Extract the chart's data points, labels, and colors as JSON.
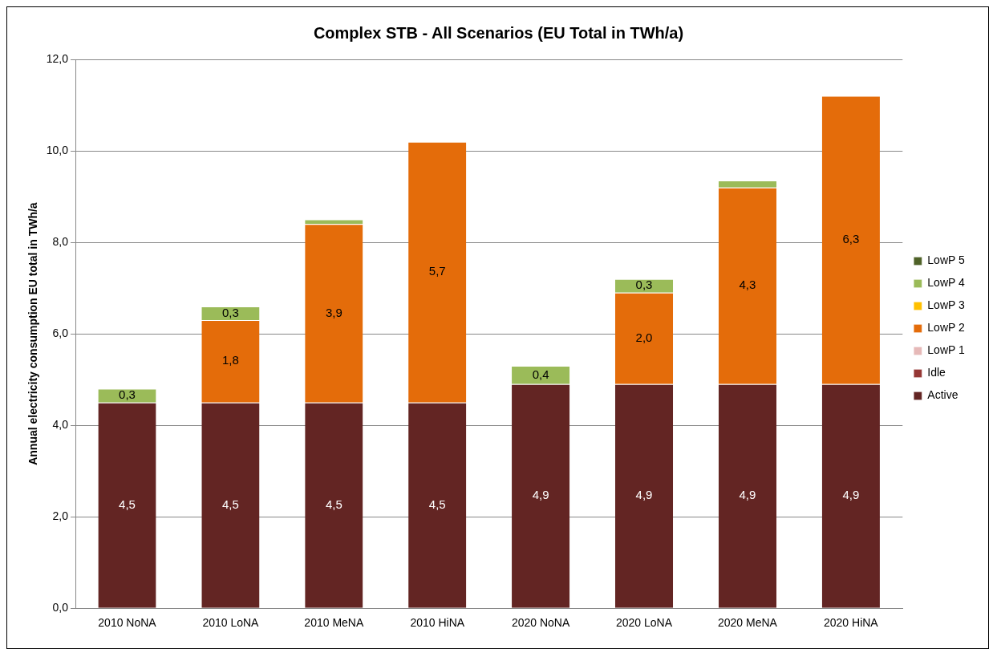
{
  "chart_data": {
    "type": "bar",
    "title": "Complex STB - All Scenarios (EU Total in TWh/a)",
    "ylabel": "Annual electricity consumption EU total in TWh/a",
    "categories": [
      "2010 NoNA",
      "2010 LoNA",
      "2010 MeNA",
      "2010 HiNA",
      "2020 NoNA",
      "2020 LoNA",
      "2020 MeNA",
      "2020 HiNA"
    ],
    "stacked": true,
    "grid": "y",
    "legend": "right",
    "ylim": [
      0,
      12
    ],
    "yticks": [
      {
        "value": 0,
        "label": "0,0"
      },
      {
        "value": 2,
        "label": "2,0"
      },
      {
        "value": 4,
        "label": "4,0"
      },
      {
        "value": 6,
        "label": "6,0"
      },
      {
        "value": 8,
        "label": "8,0"
      },
      {
        "value": 10,
        "label": "10,0"
      },
      {
        "value": 12,
        "label": "12,0"
      }
    ],
    "series": [
      {
        "name": "Active",
        "color": "#632523",
        "values": [
          4.5,
          4.5,
          4.5,
          4.5,
          4.9,
          4.9,
          4.9,
          4.9
        ],
        "value_labels": [
          "4,5",
          "4,5",
          "4,5",
          "4,5",
          "4,9",
          "4,9",
          "4,9",
          "4,9"
        ]
      },
      {
        "name": "Idle",
        "color": "#953735",
        "values": [
          0,
          0,
          0,
          0,
          0,
          0,
          0,
          0
        ]
      },
      {
        "name": "LowP 1",
        "color": "#e6b9b8",
        "values": [
          0,
          0,
          0,
          0,
          0,
          0,
          0,
          0
        ]
      },
      {
        "name": "LowP 2",
        "color": "#e46c0a",
        "values": [
          0,
          1.8,
          3.9,
          5.7,
          0,
          2.0,
          4.3,
          6.3
        ],
        "value_labels": [
          null,
          "1,8",
          "3,9",
          "5,7",
          null,
          "2,0",
          "4,3",
          "6,3"
        ]
      },
      {
        "name": "LowP 3",
        "color": "#ffc000",
        "values": [
          0,
          0,
          0,
          0,
          0,
          0,
          0,
          0
        ]
      },
      {
        "name": "LowP 4",
        "color": "#9bbb59",
        "values": [
          0.3,
          0.3,
          0.1,
          0,
          0.4,
          0.3,
          0.15,
          0
        ],
        "value_labels": [
          "0,3",
          "0,3",
          null,
          null,
          "0,4",
          "0,3",
          null,
          null
        ]
      },
      {
        "name": "LowP 5",
        "color": "#4f6228",
        "values": [
          0,
          0,
          0,
          0,
          0,
          0,
          0,
          0
        ]
      }
    ]
  }
}
